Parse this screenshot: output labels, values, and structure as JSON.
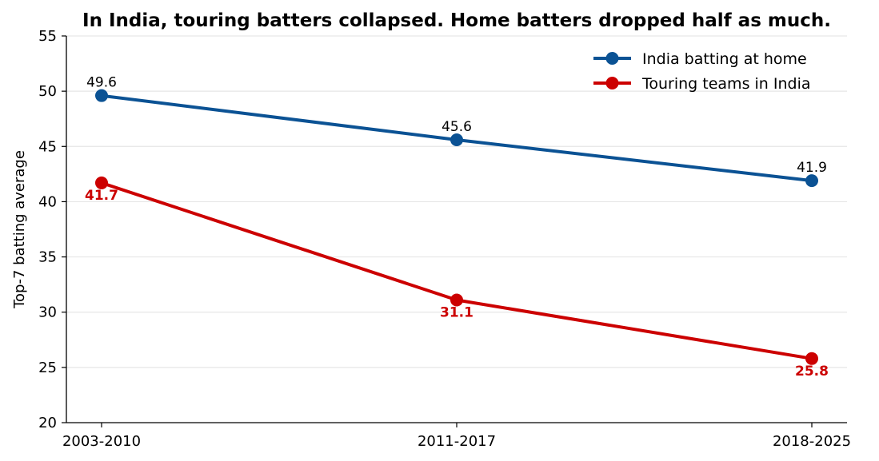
{
  "chart_data": {
    "type": "line",
    "title": "In India, touring batters collapsed. Home batters dropped half as much.",
    "xlabel": "",
    "ylabel": "Top-7 batting average",
    "categories": [
      "2003-2010",
      "2011-2017",
      "2018-2025"
    ],
    "ylim": [
      20,
      55
    ],
    "yticks": [
      20,
      25,
      30,
      35,
      40,
      45,
      50,
      55
    ],
    "grid": "horizontal",
    "legend_position": "top-right",
    "series": [
      {
        "name": "India batting at home",
        "values": [
          49.6,
          45.6,
          41.9
        ],
        "labels": [
          "49.6",
          "45.6",
          "41.9"
        ],
        "color": "#0b5294",
        "label_color": "#000000",
        "label_placement": "above"
      },
      {
        "name": "Touring teams in India",
        "values": [
          41.7,
          31.1,
          25.8
        ],
        "labels": [
          "41.7",
          "31.1",
          "25.8"
        ],
        "color": "#cc0000",
        "label_color": "#cc0000",
        "label_placement": "below"
      }
    ]
  }
}
